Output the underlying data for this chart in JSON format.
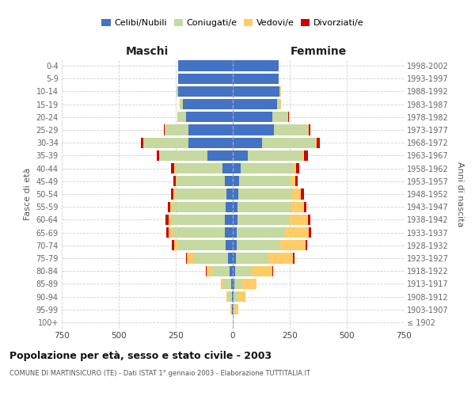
{
  "age_groups": [
    "100+",
    "95-99",
    "90-94",
    "85-89",
    "80-84",
    "75-79",
    "70-74",
    "65-69",
    "60-64",
    "55-59",
    "50-54",
    "45-49",
    "40-44",
    "35-39",
    "30-34",
    "25-29",
    "20-24",
    "15-19",
    "10-14",
    "5-9",
    "0-4"
  ],
  "birth_years": [
    "≤ 1902",
    "1903-1907",
    "1908-1912",
    "1913-1917",
    "1918-1922",
    "1923-1927",
    "1928-1932",
    "1933-1937",
    "1938-1942",
    "1943-1947",
    "1948-1952",
    "1953-1957",
    "1958-1962",
    "1963-1967",
    "1968-1972",
    "1973-1977",
    "1978-1982",
    "1983-1987",
    "1988-1992",
    "1993-1997",
    "1998-2002"
  ],
  "maschi": {
    "celibi": [
      0,
      2,
      5,
      8,
      15,
      20,
      30,
      35,
      35,
      30,
      28,
      35,
      45,
      110,
      195,
      195,
      205,
      220,
      240,
      240,
      240
    ],
    "coniugati": [
      0,
      5,
      15,
      30,
      80,
      155,
      210,
      230,
      235,
      235,
      225,
      210,
      210,
      210,
      195,
      100,
      35,
      10,
      5,
      0,
      0
    ],
    "vedovi": [
      0,
      3,
      8,
      15,
      20,
      25,
      18,
      15,
      12,
      8,
      6,
      4,
      2,
      2,
      2,
      2,
      2,
      1,
      0,
      0,
      0
    ],
    "divorziati": [
      0,
      0,
      0,
      0,
      2,
      5,
      8,
      10,
      12,
      12,
      12,
      12,
      15,
      12,
      10,
      5,
      2,
      0,
      0,
      0,
      0
    ]
  },
  "femmine": {
    "nubili": [
      0,
      2,
      5,
      8,
      10,
      15,
      18,
      18,
      20,
      22,
      25,
      28,
      35,
      65,
      130,
      180,
      175,
      195,
      205,
      200,
      200
    ],
    "coniugate": [
      0,
      5,
      15,
      30,
      75,
      140,
      190,
      210,
      225,
      230,
      235,
      225,
      230,
      240,
      235,
      150,
      65,
      15,
      5,
      0,
      0
    ],
    "vedove": [
      2,
      18,
      35,
      65,
      90,
      110,
      110,
      105,
      85,
      60,
      38,
      20,
      12,
      6,
      4,
      4,
      3,
      2,
      1,
      0,
      0
    ],
    "divorziate": [
      0,
      0,
      0,
      0,
      2,
      5,
      10,
      10,
      12,
      12,
      15,
      12,
      15,
      20,
      12,
      5,
      2,
      0,
      0,
      0,
      0
    ]
  },
  "colors": {
    "celibi": "#4472C4",
    "coniugati": "#C5D9A0",
    "vedovi": "#FFCC66",
    "divorziati": "#CC0000"
  },
  "xlim": 750,
  "title": "Popolazione per età, sesso e stato civile - 2003",
  "subtitle": "COMUNE DI MARTINSICURO (TE) - Dati ISTAT 1° gennaio 2003 - Elaborazione TUTTITALIA.IT",
  "ylabel": "Fasce di età",
  "ylabel_right": "Anni di nascita",
  "xlabel_left": "Maschi",
  "xlabel_right": "Femmine",
  "background_color": "#ffffff",
  "grid_color": "#cccccc"
}
